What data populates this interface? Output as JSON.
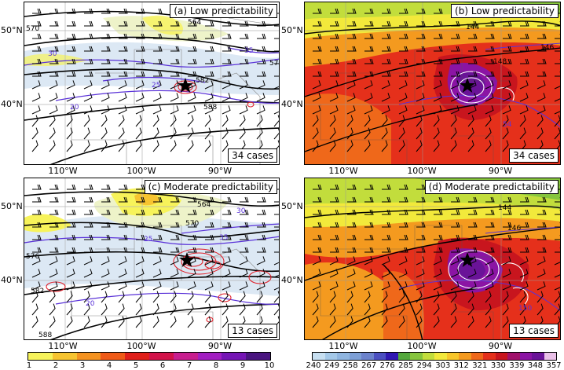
{
  "panels": [
    {
      "id": "a",
      "title": "(a) Low predictability",
      "cases": "34 cases",
      "field": "precip"
    },
    {
      "id": "b",
      "title": "(b) Low predictability",
      "cases": "34 cases",
      "field": "thetae"
    },
    {
      "id": "c",
      "title": "(c) Moderate predictability",
      "cases": "13 cases",
      "field": "precip"
    },
    {
      "id": "d",
      "title": "(d) Moderate predictability",
      "cases": "13 cases",
      "field": "thetae"
    }
  ],
  "axes": {
    "lat_labels": [
      "50°N",
      "40°N"
    ],
    "lon_labels": [
      "110°W",
      "100°W",
      "90°W"
    ]
  },
  "contour_labels": {
    "a": [
      "570",
      "30",
      "35",
      "25",
      "20",
      "564",
      "57",
      "582",
      "588"
    ],
    "b": [
      "144",
      "146",
      "148",
      "54"
    ],
    "c": [
      "564",
      "30",
      "570",
      "25",
      "35",
      "576",
      "582",
      "20",
      "588"
    ],
    "d": [
      "144",
      "146",
      "150"
    ]
  },
  "colorbar_left": {
    "ticks": [
      "1",
      "2",
      "3",
      "4",
      "5",
      "6",
      "7",
      "8",
      "9",
      "10"
    ],
    "colors": [
      "#f7f35a",
      "#f7c430",
      "#f49220",
      "#ef5a17",
      "#e01f1a",
      "#d2124a",
      "#c81e8f",
      "#a21ec2",
      "#7515b5",
      "#4a1580"
    ]
  },
  "colorbar_right": {
    "ticks": [
      "240",
      "249",
      "258",
      "267",
      "276",
      "285",
      "294",
      "303",
      "312",
      "321",
      "330",
      "339",
      "348",
      "357"
    ],
    "colors": [
      "#c7dff1",
      "#a4c8e8",
      "#8fb5e0",
      "#7d9fd6",
      "#6b82cc",
      "#4a4fc1",
      "#2f18b2",
      "#53a83c",
      "#86c53d",
      "#c2dd3c",
      "#f2e93b",
      "#f7c62a",
      "#f49a1f",
      "#ef681a",
      "#e5301b",
      "#c8151e",
      "#a0106b",
      "#8b14a4",
      "#6a1398",
      "#eac0e8"
    ]
  },
  "map_colors": {
    "precip_bg": "#ffffff",
    "light_blue": "#dce8f4",
    "yellow": "#f7f35a",
    "orange": "#f49220",
    "red_contour": "#e0202a",
    "purple_contour": "#5a32d8",
    "white_contour": "#ffffff",
    "thetae_green": "#7ccf48",
    "thetae_yellow": "#f2e93b",
    "thetae_orange": "#f49a1f",
    "thetae_red": "#e5301b",
    "thetae_darkred": "#c8151e",
    "thetae_purple": "#8b14a4"
  },
  "icons": {
    "marker": "star-icon"
  }
}
